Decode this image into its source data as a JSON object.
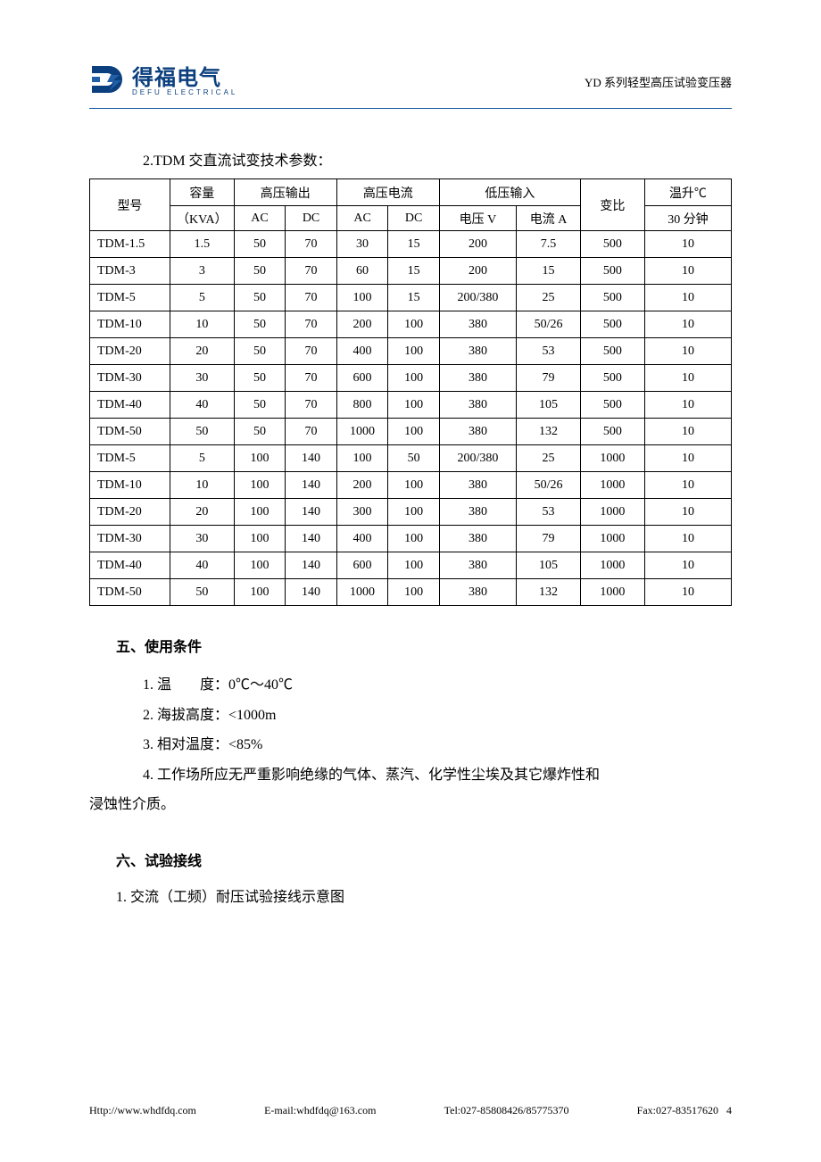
{
  "header": {
    "logo_name": "得福电气",
    "logo_sub": "DEFU ELECTRICAL",
    "doc_title": "YD 系列轻型高压试验变压器",
    "logo_colors": {
      "primary": "#0b3f7d",
      "accent": "#215fa6"
    }
  },
  "table_lead": "2.TDM 交直流试变技术参数：",
  "table": {
    "col_widths_pct": [
      12.5,
      10,
      8,
      8,
      8,
      8,
      12,
      10,
      10,
      13.5
    ],
    "head_row1": {
      "model": "型号",
      "capacity": "容量",
      "hv_out": "高压输出",
      "hv_cur": "高压电流",
      "lv_in": "低压输入",
      "ratio": "变比",
      "temp": "温升℃"
    },
    "head_row2": {
      "capacity_unit": "（KVA）",
      "ac1": "AC",
      "dc1": "DC",
      "ac2": "AC",
      "dc2": "DC",
      "voltV": "电压 V",
      "curA": "电流 A",
      "temp_sub": "30 分钟"
    },
    "rows": [
      [
        "TDM-1.5",
        "1.5",
        "50",
        "70",
        "30",
        "15",
        "200",
        "7.5",
        "500",
        "10"
      ],
      [
        "TDM-3",
        "3",
        "50",
        "70",
        "60",
        "15",
        "200",
        "15",
        "500",
        "10"
      ],
      [
        "TDM-5",
        "5",
        "50",
        "70",
        "100",
        "15",
        "200/380",
        "25",
        "500",
        "10"
      ],
      [
        "TDM-10",
        "10",
        "50",
        "70",
        "200",
        "100",
        "380",
        "50/26",
        "500",
        "10"
      ],
      [
        "TDM-20",
        "20",
        "50",
        "70",
        "400",
        "100",
        "380",
        "53",
        "500",
        "10"
      ],
      [
        "TDM-30",
        "30",
        "50",
        "70",
        "600",
        "100",
        "380",
        "79",
        "500",
        "10"
      ],
      [
        "TDM-40",
        "40",
        "50",
        "70",
        "800",
        "100",
        "380",
        "105",
        "500",
        "10"
      ],
      [
        "TDM-50",
        "50",
        "50",
        "70",
        "1000",
        "100",
        "380",
        "132",
        "500",
        "10"
      ],
      [
        "TDM-5",
        "5",
        "100",
        "140",
        "100",
        "50",
        "200/380",
        "25",
        "1000",
        "10"
      ],
      [
        "TDM-10",
        "10",
        "100",
        "140",
        "200",
        "100",
        "380",
        "50/26",
        "1000",
        "10"
      ],
      [
        "TDM-20",
        "20",
        "100",
        "140",
        "300",
        "100",
        "380",
        "53",
        "1000",
        "10"
      ],
      [
        "TDM-30",
        "30",
        "100",
        "140",
        "400",
        "100",
        "380",
        "79",
        "1000",
        "10"
      ],
      [
        "TDM-40",
        "40",
        "100",
        "140",
        "600",
        "100",
        "380",
        "105",
        "1000",
        "10"
      ],
      [
        "TDM-50",
        "50",
        "100",
        "140",
        "1000",
        "100",
        "380",
        "132",
        "1000",
        "10"
      ]
    ]
  },
  "section5": {
    "heading": "五、使用条件",
    "items": [
      "1. 温　　度：0℃～40℃",
      "2. 海拔高度：<1000m",
      "3. 相对温度：<85%"
    ],
    "wrap_line": "4. 工作场所应无严重影响绝缘的气体、蒸汽、化学性尘埃及其它爆炸性和",
    "wrap_cont": "浸蚀性介质。"
  },
  "section6": {
    "heading": "六、试验接线",
    "sub": "1. 交流（工频）耐压试验接线示意图"
  },
  "footer": {
    "website": "Http://www.whdfdq.com",
    "email": "E-mail:whdfdq@163.com",
    "tel": "Tel:027-85808426/85775370",
    "fax": "Fax:027-83517620",
    "page": "4"
  }
}
